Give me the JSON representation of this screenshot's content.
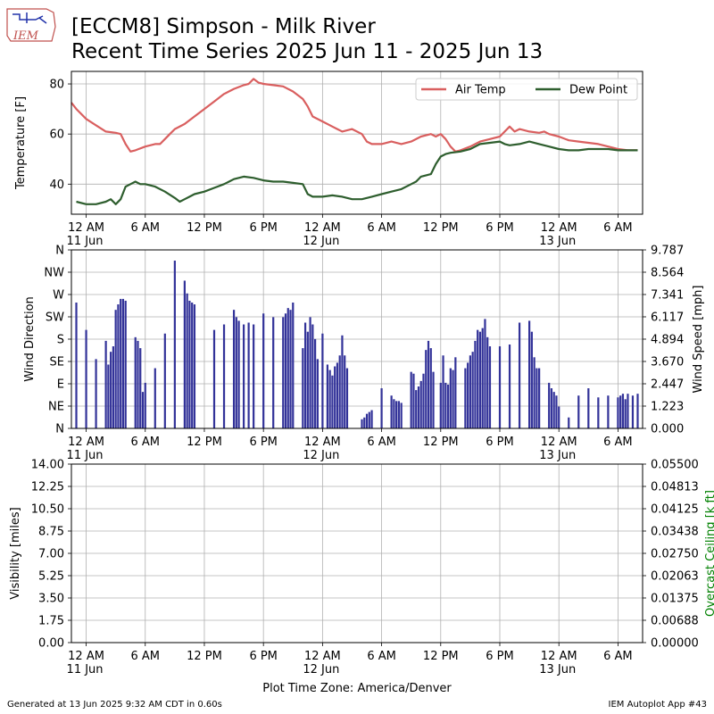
{
  "title_line1": "[ECCM8] Simpson - Milk River",
  "title_line2": "Recent Time Series 2025 Jun 11 - 2025 Jun 13",
  "footer_left": "Generated at 13 Jun 2025 9:32 AM CDT in 0.60s",
  "footer_right": "IEM Autoplot App #43",
  "timezone_label": "Plot Time Zone: America/Denver",
  "logo_text": "IEM",
  "colors": {
    "air_temp": "#d95f5f",
    "dew_point": "#2e5e2e",
    "wind_bars": "#333399",
    "grid": "#b0b0b0",
    "ceiling_label": "#008000"
  },
  "chart_data": [
    {
      "type": "line",
      "id": "temperature",
      "ylabel": "Temperature [F]",
      "ylim": [
        28,
        85
      ],
      "yticks": [
        40,
        60,
        80
      ],
      "xlim_hours": [
        -1.5,
        56.5
      ],
      "xticks": [
        {
          "h": 0,
          "label": "12 AM",
          "sub": "11 Jun"
        },
        {
          "h": 6,
          "label": "6 AM",
          "sub": ""
        },
        {
          "h": 12,
          "label": "12 PM",
          "sub": ""
        },
        {
          "h": 18,
          "label": "6 PM",
          "sub": ""
        },
        {
          "h": 24,
          "label": "12 AM",
          "sub": "12 Jun"
        },
        {
          "h": 30,
          "label": "6 AM",
          "sub": ""
        },
        {
          "h": 36,
          "label": "12 PM",
          "sub": ""
        },
        {
          "h": 42,
          "label": "6 PM",
          "sub": ""
        },
        {
          "h": 48,
          "label": "12 AM",
          "sub": "13 Jun"
        },
        {
          "h": 54,
          "label": "6 AM",
          "sub": ""
        }
      ],
      "grid": true,
      "legend": "top-right",
      "series": [
        {
          "name": "Air Temp",
          "points": [
            [
              -1.5,
              72.5
            ],
            [
              -1,
              70
            ],
            [
              0,
              66
            ],
            [
              1,
              63.5
            ],
            [
              2,
              61
            ],
            [
              3,
              60.5
            ],
            [
              3.5,
              60
            ],
            [
              4,
              56
            ],
            [
              4.5,
              53
            ],
            [
              5,
              53.5
            ],
            [
              6,
              55
            ],
            [
              7,
              56
            ],
            [
              7.5,
              56
            ],
            [
              8,
              58
            ],
            [
              8.5,
              60
            ],
            [
              9,
              62
            ],
            [
              10,
              64
            ],
            [
              11,
              67
            ],
            [
              12,
              70
            ],
            [
              13,
              73
            ],
            [
              14,
              76
            ],
            [
              15,
              78
            ],
            [
              16,
              79.5
            ],
            [
              16.5,
              80
            ],
            [
              17,
              82
            ],
            [
              17.5,
              80.5
            ],
            [
              18,
              80
            ],
            [
              19,
              79.5
            ],
            [
              20,
              79
            ],
            [
              21,
              77
            ],
            [
              22,
              74
            ],
            [
              22.5,
              71
            ],
            [
              23,
              67
            ],
            [
              24,
              65
            ],
            [
              25,
              63
            ],
            [
              25.5,
              62
            ],
            [
              26,
              61
            ],
            [
              27,
              62
            ],
            [
              28,
              60
            ],
            [
              28.5,
              57
            ],
            [
              29,
              56
            ],
            [
              30,
              56
            ],
            [
              31,
              57
            ],
            [
              32,
              56
            ],
            [
              33,
              57
            ],
            [
              34,
              59
            ],
            [
              35,
              60
            ],
            [
              35.5,
              59
            ],
            [
              36,
              60
            ],
            [
              36.5,
              58
            ],
            [
              37,
              55
            ],
            [
              37.5,
              53
            ],
            [
              38,
              53.5
            ],
            [
              39,
              55
            ],
            [
              40,
              57
            ],
            [
              41,
              58
            ],
            [
              42,
              59
            ],
            [
              43,
              63
            ],
            [
              43.5,
              61
            ],
            [
              44,
              62
            ],
            [
              45,
              61
            ],
            [
              46,
              60.5
            ],
            [
              46.5,
              61
            ],
            [
              47,
              60
            ],
            [
              48,
              59
            ],
            [
              49,
              57.5
            ],
            [
              50,
              57
            ],
            [
              51,
              56.5
            ],
            [
              52,
              56
            ],
            [
              53,
              55
            ],
            [
              54,
              54
            ],
            [
              55,
              53.5
            ],
            [
              56,
              53.5
            ]
          ]
        },
        {
          "name": "Dew Point",
          "points": [
            [
              -1,
              33
            ],
            [
              0,
              32
            ],
            [
              1,
              32
            ],
            [
              2,
              33
            ],
            [
              2.5,
              34
            ],
            [
              3,
              32
            ],
            [
              3.5,
              34
            ],
            [
              4,
              39
            ],
            [
              4.5,
              40
            ],
            [
              5,
              41
            ],
            [
              5.5,
              40
            ],
            [
              6,
              40
            ],
            [
              7,
              39
            ],
            [
              8,
              37
            ],
            [
              9,
              34.5
            ],
            [
              9.5,
              33
            ],
            [
              10,
              34
            ],
            [
              10.5,
              35
            ],
            [
              11,
              36
            ],
            [
              12,
              37
            ],
            [
              13,
              38.5
            ],
            [
              14,
              40
            ],
            [
              14.5,
              41
            ],
            [
              15,
              42
            ],
            [
              16,
              43
            ],
            [
              17,
              42.5
            ],
            [
              18,
              41.5
            ],
            [
              19,
              41
            ],
            [
              20,
              41
            ],
            [
              21,
              40.5
            ],
            [
              22,
              40
            ],
            [
              22.5,
              36
            ],
            [
              23,
              35
            ],
            [
              24,
              35
            ],
            [
              25,
              35.5
            ],
            [
              26,
              35
            ],
            [
              27,
              34
            ],
            [
              28,
              34
            ],
            [
              29,
              35
            ],
            [
              30,
              36
            ],
            [
              31,
              37
            ],
            [
              32,
              38
            ],
            [
              33,
              40
            ],
            [
              33.5,
              41
            ],
            [
              34,
              43
            ],
            [
              35,
              44
            ],
            [
              35.5,
              48
            ],
            [
              36,
              51
            ],
            [
              36.5,
              52
            ],
            [
              37,
              52.5
            ],
            [
              38,
              53
            ],
            [
              39,
              54
            ],
            [
              40,
              56
            ],
            [
              41,
              56.5
            ],
            [
              42,
              57
            ],
            [
              42.5,
              56
            ],
            [
              43,
              55.5
            ],
            [
              44,
              56
            ],
            [
              45,
              57
            ],
            [
              46,
              56
            ],
            [
              47,
              55
            ],
            [
              48,
              54
            ],
            [
              49,
              53.5
            ],
            [
              50,
              53.5
            ],
            [
              51,
              54
            ],
            [
              52,
              54
            ],
            [
              53,
              54
            ],
            [
              54,
              53.5
            ],
            [
              55,
              53.5
            ],
            [
              56,
              53.5
            ]
          ]
        }
      ]
    },
    {
      "type": "bar",
      "id": "wind",
      "ylabel": "Wind Direction",
      "ylabel_right": "Wind Speed [mph]",
      "ylim": [
        0,
        9.787
      ],
      "ylim_right": [
        0,
        9.787
      ],
      "yticks_left": [
        {
          "v": 0,
          "label": "N"
        },
        {
          "v": 1.223,
          "label": "NE"
        },
        {
          "v": 2.447,
          "label": "E"
        },
        {
          "v": 3.67,
          "label": "SE"
        },
        {
          "v": 4.894,
          "label": "S"
        },
        {
          "v": 6.117,
          "label": "SW"
        },
        {
          "v": 7.341,
          "label": "W"
        },
        {
          "v": 8.564,
          "label": "NW"
        },
        {
          "v": 9.787,
          "label": "N"
        }
      ],
      "yticks_right": [
        "0.000",
        "1.223",
        "2.447",
        "3.670",
        "4.894",
        "6.117",
        "7.341",
        "8.564",
        "9.787"
      ],
      "grid": true,
      "bar_width_hours": 0.2,
      "bars": [
        [
          -1,
          6.9
        ],
        [
          0,
          5.4
        ],
        [
          1,
          3.8
        ],
        [
          2,
          4.8
        ],
        [
          2.25,
          3.5
        ],
        [
          2.5,
          4.2
        ],
        [
          2.75,
          4.5
        ],
        [
          3,
          6.5
        ],
        [
          3.25,
          6.8
        ],
        [
          3.5,
          7.1
        ],
        [
          3.75,
          7.1
        ],
        [
          4,
          7
        ],
        [
          5,
          5
        ],
        [
          5.25,
          4.8
        ],
        [
          5.5,
          4.4
        ],
        [
          5.75,
          2
        ],
        [
          6,
          2.5
        ],
        [
          7,
          3.3
        ],
        [
          8,
          5.2
        ],
        [
          9,
          9.2
        ],
        [
          10,
          8.1
        ],
        [
          10.25,
          7.4
        ],
        [
          10.5,
          7
        ],
        [
          10.75,
          6.9
        ],
        [
          11,
          6.8
        ],
        [
          13,
          5.4
        ],
        [
          14,
          5.7
        ],
        [
          15,
          6.5
        ],
        [
          15.25,
          6.1
        ],
        [
          15.5,
          5.9
        ],
        [
          16,
          5.7
        ],
        [
          16.5,
          5.8
        ],
        [
          17,
          5.7
        ],
        [
          18,
          6.3
        ],
        [
          19,
          6.1
        ],
        [
          20,
          6.1
        ],
        [
          20.25,
          6.3
        ],
        [
          20.5,
          6.6
        ],
        [
          20.75,
          6.5
        ],
        [
          21,
          6.9
        ],
        [
          22,
          4.4
        ],
        [
          22.25,
          5.8
        ],
        [
          22.5,
          5.3
        ],
        [
          22.75,
          6.1
        ],
        [
          23,
          5.7
        ],
        [
          23.25,
          4.9
        ],
        [
          23.5,
          3.8
        ],
        [
          24,
          5.2
        ],
        [
          24.5,
          3.5
        ],
        [
          24.75,
          3.2
        ],
        [
          25,
          2.9
        ],
        [
          25.25,
          3.4
        ],
        [
          25.5,
          3.6
        ],
        [
          25.75,
          4
        ],
        [
          26,
          5.1
        ],
        [
          26.25,
          4
        ],
        [
          26.5,
          3.3
        ],
        [
          28,
          0.5
        ],
        [
          28.25,
          0.6
        ],
        [
          28.5,
          0.8
        ],
        [
          28.75,
          0.9
        ],
        [
          29,
          1
        ],
        [
          30,
          2.2
        ],
        [
          31,
          1.8
        ],
        [
          31.25,
          1.6
        ],
        [
          31.5,
          1.5
        ],
        [
          31.75,
          1.5
        ],
        [
          32,
          1.4
        ],
        [
          33,
          3.1
        ],
        [
          33.25,
          3
        ],
        [
          33.5,
          2.1
        ],
        [
          33.75,
          2.3
        ],
        [
          34,
          2.6
        ],
        [
          34.25,
          3
        ],
        [
          34.5,
          4.3
        ],
        [
          34.75,
          4.8
        ],
        [
          35,
          4.4
        ],
        [
          35.25,
          3.1
        ],
        [
          36,
          2.5
        ],
        [
          36.25,
          4
        ],
        [
          36.5,
          2.5
        ],
        [
          36.75,
          2.4
        ],
        [
          37,
          3.3
        ],
        [
          37.25,
          3.2
        ],
        [
          37.5,
          3.9
        ],
        [
          38.5,
          3.3
        ],
        [
          38.75,
          3.6
        ],
        [
          39,
          4
        ],
        [
          39.25,
          4.2
        ],
        [
          39.5,
          4.8
        ],
        [
          39.75,
          5.4
        ],
        [
          40,
          5.3
        ],
        [
          40.25,
          5.5
        ],
        [
          40.5,
          6
        ],
        [
          40.75,
          5
        ],
        [
          41,
          4.5
        ],
        [
          42,
          4.5
        ],
        [
          43,
          4.6
        ],
        [
          44,
          5.8
        ],
        [
          45,
          5.9
        ],
        [
          45.25,
          5.3
        ],
        [
          45.5,
          3.9
        ],
        [
          45.75,
          3.3
        ],
        [
          46,
          3.3
        ],
        [
          47,
          2.5
        ],
        [
          47.25,
          2.2
        ],
        [
          47.5,
          2
        ],
        [
          47.75,
          1.8
        ],
        [
          48,
          1.2
        ],
        [
          49,
          0.6
        ],
        [
          50,
          1.8
        ],
        [
          51,
          2.2
        ],
        [
          52,
          1.7
        ],
        [
          53,
          1.8
        ],
        [
          54,
          1.7
        ],
        [
          54.25,
          1.8
        ],
        [
          54.5,
          1.9
        ],
        [
          54.75,
          1.6
        ],
        [
          55,
          1.9
        ],
        [
          55.5,
          1.8
        ],
        [
          56,
          1.9
        ]
      ]
    },
    {
      "type": "line",
      "id": "visibility",
      "ylabel": "Visibility [miles]",
      "ylabel_right": "Overcast Ceiling [k ft]",
      "ylim": [
        0,
        14
      ],
      "ylim_right": [
        0,
        0.055
      ],
      "yticks_left": [
        "0.00",
        "1.75",
        "3.50",
        "5.25",
        "7.00",
        "8.75",
        "10.50",
        "12.25",
        "14.00"
      ],
      "yticks_right": [
        "0.00000",
        "0.00688",
        "0.01375",
        "0.02063",
        "0.02750",
        "0.03438",
        "0.04125",
        "0.04813",
        "0.05500"
      ],
      "grid": true,
      "series": []
    }
  ]
}
